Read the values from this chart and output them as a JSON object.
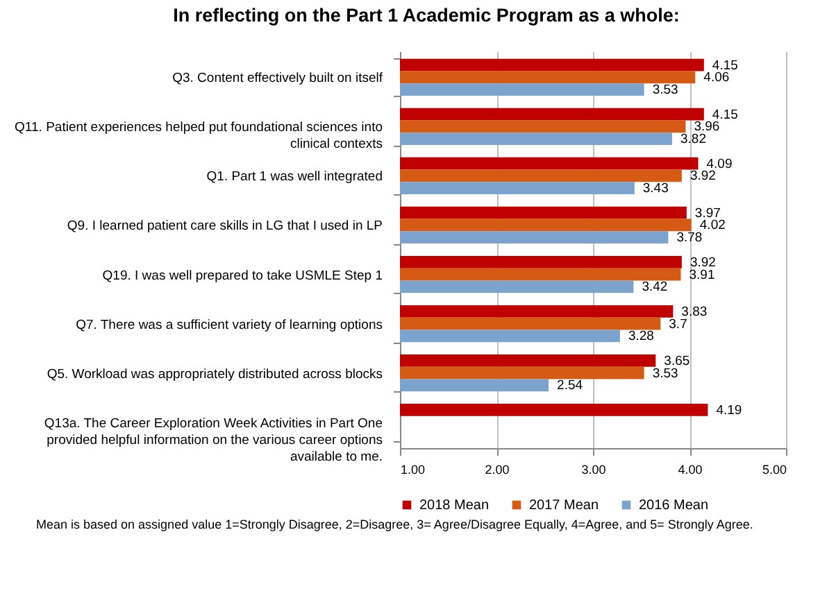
{
  "chart_data": {
    "type": "bar",
    "orientation": "horizontal",
    "title": "In reflecting on the Part 1 Academic Program as a whole:",
    "categories": [
      "Q3. Content effectively built on itself",
      "Q11. Patient experiences helped put foundational sciences into clinical contexts",
      "Q1. Part 1 was well integrated",
      "Q9. I learned patient care skills in LG that I used in LP",
      "Q19. I was well prepared to take USMLE Step 1",
      "Q7. There was a sufficient variety of learning options",
      "Q5. Workload was appropriately distributed across blocks",
      "Q13a. The Career Exploration Week Activities in Part One provided helpful information on the various career options available to me."
    ],
    "series": [
      {
        "name": "2018 Mean",
        "color": "#c00000",
        "values": [
          4.15,
          4.15,
          4.09,
          3.97,
          3.92,
          3.83,
          3.65,
          4.19
        ]
      },
      {
        "name": "2017 Mean",
        "color": "#d55a13",
        "values": [
          4.06,
          3.96,
          3.92,
          4.02,
          3.91,
          3.7,
          3.53,
          null
        ]
      },
      {
        "name": "2016 Mean",
        "color": "#7ba3cc",
        "values": [
          3.53,
          3.82,
          3.43,
          3.78,
          3.42,
          3.28,
          2.54,
          null
        ]
      }
    ],
    "xlim": [
      1,
      5
    ],
    "xticks": [
      {
        "value": 1,
        "label": "1.00"
      },
      {
        "value": 2,
        "label": "2.00"
      },
      {
        "value": 3,
        "label": "3.00"
      },
      {
        "value": 4,
        "label": "4.00"
      },
      {
        "value": 5,
        "label": "5.00"
      }
    ],
    "grid": "x",
    "legend": "bottom",
    "data_labels": true,
    "annotations": [
      "Mean is based on assigned value 1=Strongly Disagree, 2=Disagree, 3= Agree/Disagree Equally, 4=Agree, and 5= Strongly Agree."
    ]
  }
}
